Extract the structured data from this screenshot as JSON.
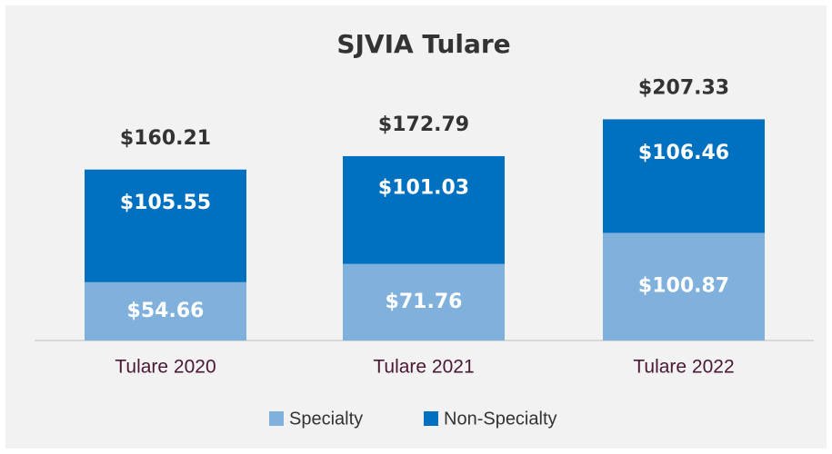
{
  "chart_data": {
    "type": "stacked_bar",
    "title": "SJVIA Tulare",
    "categories": [
      "Tulare 2020",
      "Tulare 2021",
      "Tulare 2022"
    ],
    "series": [
      {
        "name": "Specialty",
        "color": "#7fb1dc",
        "values": [
          54.66,
          71.76,
          100.87
        ],
        "value_labels": [
          "$54.66",
          "$71.76",
          "$100.87"
        ]
      },
      {
        "name": "Non-Specialty",
        "color": "#0070c0",
        "values": [
          105.55,
          101.03,
          106.46
        ],
        "value_labels": [
          "$105.55",
          "$101.03",
          "$106.46"
        ]
      }
    ],
    "totals": [
      160.21,
      172.79,
      207.33
    ],
    "total_labels": [
      "$160.21",
      "$172.79",
      "$207.33"
    ],
    "legend": "bottom"
  }
}
